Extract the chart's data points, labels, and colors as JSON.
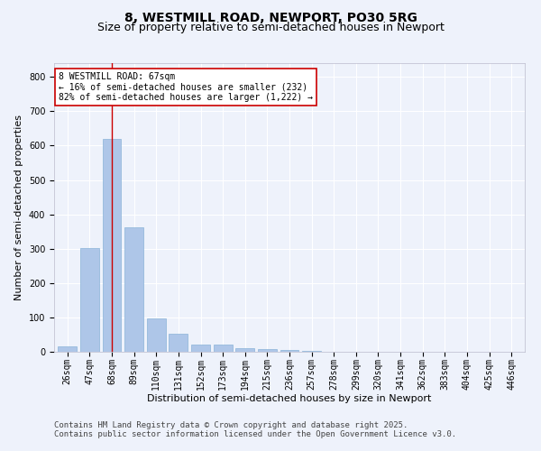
{
  "title_line1": "8, WESTMILL ROAD, NEWPORT, PO30 5RG",
  "title_line2": "Size of property relative to semi-detached houses in Newport",
  "xlabel": "Distribution of semi-detached houses by size in Newport",
  "ylabel": "Number of semi-detached properties",
  "categories": [
    "26sqm",
    "47sqm",
    "68sqm",
    "89sqm",
    "110sqm",
    "131sqm",
    "152sqm",
    "173sqm",
    "194sqm",
    "215sqm",
    "236sqm",
    "257sqm",
    "278sqm",
    "299sqm",
    "320sqm",
    "341sqm",
    "362sqm",
    "383sqm",
    "404sqm",
    "425sqm",
    "446sqm"
  ],
  "values": [
    15,
    302,
    620,
    362,
    98,
    53,
    22,
    22,
    11,
    9,
    4,
    2,
    1,
    1,
    0,
    0,
    0,
    0,
    0,
    0,
    0
  ],
  "bar_color": "#aec6e8",
  "bar_edge_color": "#8ab4d8",
  "highlight_index": 2,
  "highlight_line_color": "#cc0000",
  "annotation_text": "8 WESTMILL ROAD: 67sqm\n← 16% of semi-detached houses are smaller (232)\n82% of semi-detached houses are larger (1,222) →",
  "annotation_box_color": "#ffffff",
  "annotation_box_edge": "#cc0000",
  "ylim": [
    0,
    840
  ],
  "yticks": [
    0,
    100,
    200,
    300,
    400,
    500,
    600,
    700,
    800
  ],
  "footer_line1": "Contains HM Land Registry data © Crown copyright and database right 2025.",
  "footer_line2": "Contains public sector information licensed under the Open Government Licence v3.0.",
  "background_color": "#eef2fb",
  "grid_color": "#ffffff",
  "title_fontsize": 10,
  "subtitle_fontsize": 9,
  "axis_label_fontsize": 8,
  "tick_fontsize": 7,
  "annotation_fontsize": 7,
  "footer_fontsize": 6.5
}
